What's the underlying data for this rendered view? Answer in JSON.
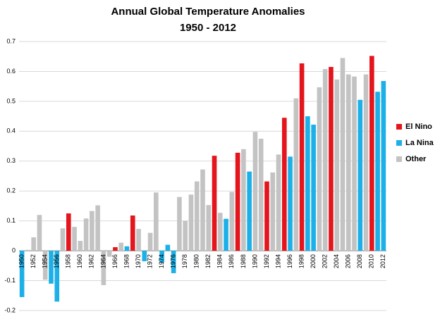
{
  "chart_data": {
    "type": "bar",
    "title": "Annual Global Temperature Anomalies",
    "subtitle": "1950 - 2012",
    "categories": [
      "1950",
      null,
      "1952",
      null,
      "1954",
      null,
      "1956",
      null,
      "1958",
      null,
      "1960",
      null,
      "1962",
      null,
      "1964",
      null,
      "1966",
      null,
      "1968",
      null,
      "1970",
      null,
      "1972",
      null,
      "1974",
      null,
      "1976",
      null,
      "1978",
      null,
      "1980",
      null,
      "1982",
      null,
      "1984",
      null,
      "1986",
      null,
      "1988",
      null,
      "1990",
      null,
      "1992",
      null,
      "1994",
      null,
      "1996",
      null,
      "1998",
      null,
      "2000",
      null,
      "2002",
      null,
      "2004",
      null,
      "2006",
      null,
      "2008",
      null,
      "2010",
      null,
      "2012"
    ],
    "series": [
      {
        "name": "El Nino",
        "color": "#e4151c",
        "values": [
          null,
          null,
          null,
          null,
          null,
          null,
          null,
          null,
          0.125,
          null,
          null,
          null,
          null,
          null,
          null,
          null,
          0.012,
          null,
          null,
          0.118,
          null,
          null,
          null,
          null,
          null,
          null,
          null,
          null,
          null,
          null,
          null,
          null,
          null,
          0.318,
          null,
          null,
          null,
          0.328,
          null,
          null,
          null,
          null,
          0.232,
          null,
          null,
          0.445,
          null,
          null,
          0.627,
          null,
          null,
          null,
          null,
          0.615,
          null,
          null,
          null,
          null,
          null,
          null,
          0.652,
          null,
          null
        ]
      },
      {
        "name": "La Nina",
        "color": "#1cb0e8",
        "values": [
          -0.155,
          null,
          null,
          null,
          null,
          -0.11,
          -0.17,
          null,
          null,
          null,
          null,
          null,
          null,
          null,
          null,
          null,
          null,
          null,
          0.015,
          null,
          null,
          -0.035,
          null,
          null,
          -0.04,
          0.02,
          -0.075,
          null,
          null,
          null,
          null,
          null,
          null,
          null,
          null,
          0.107,
          null,
          null,
          null,
          0.265,
          null,
          null,
          null,
          null,
          null,
          null,
          0.315,
          null,
          null,
          0.45,
          0.422,
          null,
          null,
          null,
          null,
          null,
          null,
          null,
          0.505,
          null,
          null,
          0.532,
          0.568
        ]
      },
      {
        "name": "Other",
        "color": "#c3c3c3",
        "values": [
          null,
          0.003,
          0.045,
          0.12,
          -0.097,
          null,
          null,
          0.075,
          null,
          0.08,
          0.033,
          0.108,
          0.133,
          0.152,
          -0.115,
          -0.02,
          null,
          0.027,
          null,
          null,
          0.073,
          null,
          0.06,
          0.195,
          null,
          null,
          null,
          0.18,
          0.1,
          0.188,
          0.232,
          0.272,
          0.153,
          null,
          0.127,
          null,
          0.197,
          null,
          0.34,
          null,
          0.398,
          0.375,
          null,
          0.262,
          0.322,
          null,
          null,
          0.51,
          null,
          null,
          null,
          0.547,
          0.608,
          null,
          0.573,
          0.645,
          0.59,
          0.583,
          null,
          0.59,
          null,
          null,
          null
        ]
      }
    ],
    "ylim": [
      -0.2,
      0.7
    ],
    "yticks": [
      -0.2,
      -0.1,
      0,
      0.1,
      0.2,
      0.3,
      0.4,
      0.5,
      0.6,
      0.7
    ],
    "grid": true,
    "legend": "right"
  }
}
